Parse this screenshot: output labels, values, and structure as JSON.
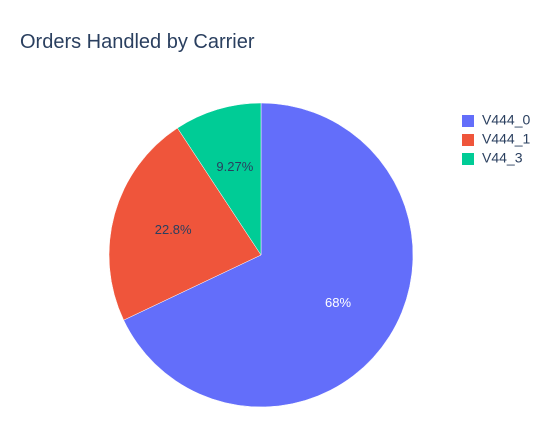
{
  "chart_data": {
    "type": "pie",
    "title": "Orders Handled by Carrier",
    "slices": [
      {
        "name": "V444_0",
        "percent": 68.0,
        "label": "68%",
        "color": "#636efa",
        "label_color": "#ffffff"
      },
      {
        "name": "V444_1",
        "percent": 22.8,
        "label": "22.8%",
        "color": "#ef553b",
        "label_color": "#2a3f5f"
      },
      {
        "name": "V44_3",
        "percent": 9.27,
        "label": "9.27%",
        "color": "#00cc96",
        "label_color": "#2a3f5f"
      }
    ],
    "start_angle_deg": 0,
    "direction": "clockwise",
    "legend": {
      "position": "top-right",
      "items": [
        "V444_0",
        "V444_1",
        "V44_3"
      ]
    }
  }
}
